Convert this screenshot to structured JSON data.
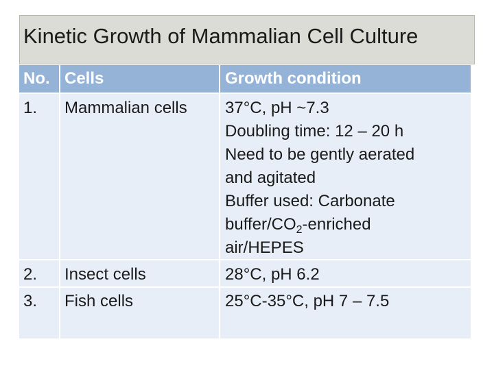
{
  "title": "Kinetic Growth of Mammalian Cell Culture",
  "table": {
    "headers": {
      "no": "No.",
      "cells": "Cells",
      "condition": "Growth condition"
    },
    "rows": [
      {
        "no": "1.",
        "cells": "Mammalian cells",
        "condition_lines": [
          "37°C, pH ~7.3",
          "Doubling time: 12 – 20 h",
          "Need to be gently aerated",
          "and agitated",
          "Buffer used: Carbonate",
          "buffer/CO2-enriched",
          "air/HEPES"
        ]
      },
      {
        "no": "2.",
        "cells": "Insect cells",
        "condition": "28°C, pH 6.2"
      },
      {
        "no": "3.",
        "cells": "Fish cells",
        "condition": "25°C-35°C, pH 7 – 7.5"
      }
    ]
  },
  "colors": {
    "header_bg": "#95b3d7",
    "body_bg": "#e8eef7",
    "title_bg": "#dcdcd6"
  }
}
